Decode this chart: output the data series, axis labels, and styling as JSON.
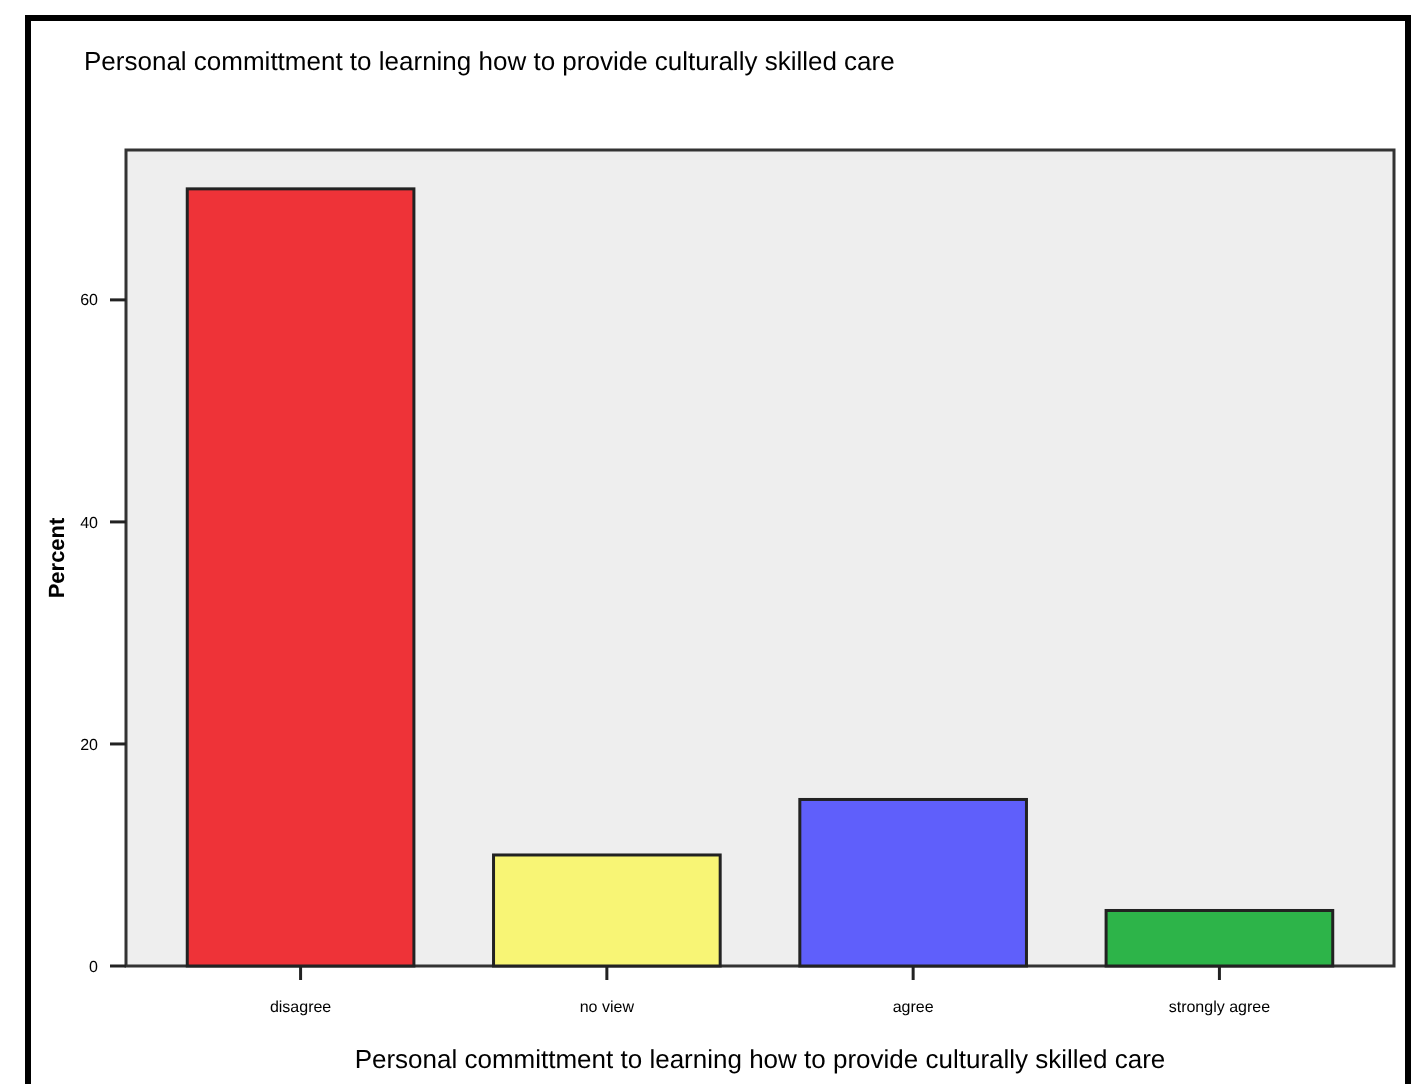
{
  "chart_data": {
    "type": "bar",
    "title": "Personal committment to learning how to provide culturally skilled care",
    "xlabel": "Personal committment to learning how to provide culturally skilled care",
    "ylabel": "Percent",
    "categories": [
      "disagree",
      "no view",
      "agree",
      "strongly agree"
    ],
    "values": [
      70,
      10,
      15,
      5
    ],
    "colors": [
      "#ee3338",
      "#f8f575",
      "#5f5ffb",
      "#2db449"
    ],
    "ylim": [
      0,
      73.5
    ],
    "yticks": [
      0,
      20,
      40,
      60
    ],
    "grid": false
  }
}
